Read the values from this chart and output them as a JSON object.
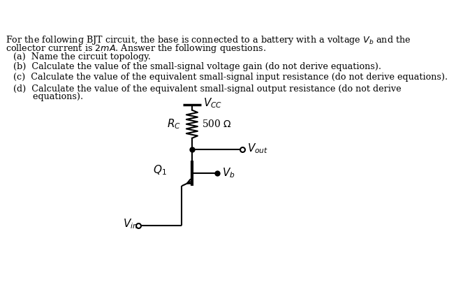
{
  "background_color": "#ffffff",
  "text_color": "#000000",
  "fig_width": 6.63,
  "fig_height": 4.11,
  "dpi": 100,
  "intro_line1": "For the following BJT circuit, the base is connected to a battery with a voltage $V_b$ and the",
  "intro_line2": "collector current is $2mA$. Answer the following questions.",
  "q_a": "(a)  Name the circuit topology.",
  "q_b": "(b)  Calculate the value of the small-signal voltage gain (do not derive equations).",
  "q_c": "(c)  Calculate the value of the equivalent small-signal input resistance (do not derive equations).",
  "q_d1": "(d)  Calculate the value of the equivalent small-signal output resistance (do not derive",
  "q_d2": "       equations).",
  "font_size": 9.2,
  "circuit_lw": 1.5
}
